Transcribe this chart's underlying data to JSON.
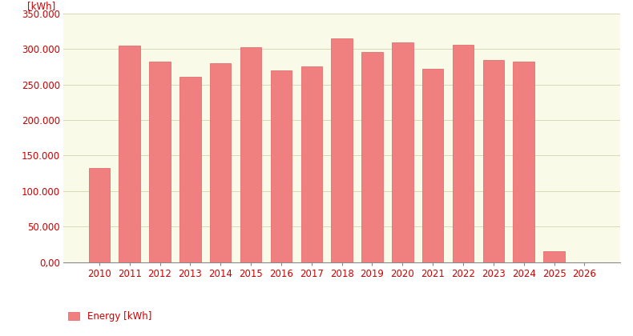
{
  "categories": [
    2010,
    2011,
    2012,
    2013,
    2014,
    2015,
    2016,
    2017,
    2018,
    2019,
    2020,
    2021,
    2022,
    2023,
    2024,
    2025,
    2026
  ],
  "values": [
    132000,
    305000,
    282000,
    261000,
    280000,
    302000,
    270000,
    276000,
    315000,
    296000,
    309000,
    272000,
    306000,
    285000,
    282000,
    15000,
    0
  ],
  "bar_color": "#F08080",
  "bar_edge_color": "#E06060",
  "plot_bg_color": "#FAFAE8",
  "fig_bg_color": "#FFFFFF",
  "grid_color": "#D8D8B8",
  "axis_color": "#CC0000",
  "ylabel_text": "[kWh]",
  "ylim": [
    0,
    350000
  ],
  "ytick_values": [
    0,
    50000,
    100000,
    150000,
    200000,
    250000,
    300000,
    350000
  ],
  "ytick_labels": [
    "0,00",
    "50.000",
    "100.000",
    "150.000",
    "200.000",
    "250.000",
    "300.000",
    "350.000"
  ],
  "legend_label": "Energy [kWh]",
  "tick_fontsize": 8.5,
  "legend_fontsize": 8.5
}
